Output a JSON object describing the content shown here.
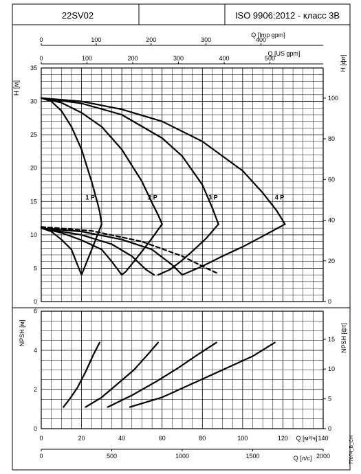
{
  "header": {
    "model": "22SV02",
    "standard": "ISO 9906:2012 - класс 3B"
  },
  "side_code": "77074_B_CH",
  "chart_data": [
    {
      "type": "line",
      "panel": "head",
      "ylabel": "H [м]",
      "ylabel_right": "H [фт]",
      "x_unit": "Q [м³/ч]",
      "xlim": [
        0,
        140
      ],
      "ylim": [
        0,
        35
      ],
      "yticks": [
        0,
        5,
        10,
        15,
        20,
        25,
        30,
        35
      ],
      "yticks_right": [
        0,
        20,
        40,
        60,
        80,
        100
      ],
      "ylim_right_ft": [
        0,
        114.8
      ],
      "top_axes": [
        {
          "label": "Q [Imp gpm]",
          "ticks": [
            0,
            100,
            200,
            300,
            400
          ],
          "max": 513.2
        },
        {
          "label": "Q [US gpm]",
          "ticks": [
            0,
            100,
            200,
            300,
            400,
            500
          ],
          "max": 616.4
        }
      ],
      "grid": true,
      "series": [
        {
          "name": "1 P",
          "label_at": [
            22,
            15.3
          ],
          "kind": "head",
          "points": [
            [
              0,
              30.5
            ],
            [
              5,
              30.0
            ],
            [
              10,
              28.6
            ],
            [
              15,
              26.2
            ],
            [
              20,
              22.8
            ],
            [
              25,
              18.0
            ],
            [
              28,
              14.7
            ],
            [
              29,
              13.5
            ],
            [
              30,
              11.6
            ]
          ]
        },
        {
          "name": "2 P",
          "label_at": [
            53,
            15.3
          ],
          "kind": "head",
          "points": [
            [
              0,
              30.5
            ],
            [
              10,
              29.8
            ],
            [
              20,
              28.3
            ],
            [
              30,
              26.2
            ],
            [
              40,
              22.8
            ],
            [
              50,
              18.0
            ],
            [
              55,
              14.8
            ],
            [
              58,
              13.0
            ],
            [
              60,
              11.6
            ]
          ]
        },
        {
          "name": "3 P",
          "label_at": [
            83,
            15.3
          ],
          "kind": "head",
          "points": [
            [
              0,
              30.5
            ],
            [
              20,
              29.7
            ],
            [
              40,
              28.0
            ],
            [
              60,
              24.5
            ],
            [
              70,
              21.8
            ],
            [
              80,
              17.5
            ],
            [
              85,
              14.0
            ],
            [
              88,
              11.6
            ]
          ]
        },
        {
          "name": "4 P",
          "label_at": [
            116,
            15.3
          ],
          "kind": "head",
          "points": [
            [
              0,
              30.5
            ],
            [
              20,
              30.0
            ],
            [
              40,
              28.8
            ],
            [
              60,
              27.0
            ],
            [
              80,
              24.0
            ],
            [
              100,
              19.6
            ],
            [
              110,
              16.3
            ],
            [
              117,
              13.6
            ],
            [
              121,
              11.6
            ]
          ]
        },
        {
          "kind": "efficiency",
          "points": [
            [
              30,
              11.6
            ],
            [
              26,
              8.5
            ],
            [
              24,
              7.0
            ],
            [
              22,
              5.5
            ],
            [
              20,
              4.0
            ]
          ]
        },
        {
          "kind": "efficiency",
          "points": [
            [
              60,
              11.6
            ],
            [
              55,
              9.5
            ],
            [
              50,
              7.5
            ],
            [
              46,
              6.0
            ],
            [
              42,
              4.5
            ],
            [
              40,
              4.0
            ]
          ]
        },
        {
          "kind": "efficiency",
          "points": [
            [
              88,
              11.6
            ],
            [
              82,
              9.5
            ],
            [
              76,
              7.8
            ],
            [
              70,
              6.2
            ],
            [
              64,
              4.8
            ],
            [
              58,
              4.0
            ]
          ]
        },
        {
          "kind": "efficiency",
          "points": [
            [
              121,
              11.6
            ],
            [
              110,
              9.8
            ],
            [
              100,
              8.2
            ],
            [
              90,
              6.8
            ],
            [
              80,
              5.3
            ],
            [
              70,
              4.0
            ]
          ]
        },
        {
          "kind": "input",
          "points": [
            [
              0,
              11.0
            ],
            [
              5,
              10.5
            ],
            [
              10,
              9.3
            ],
            [
              15,
              7.8
            ],
            [
              18,
              5.5
            ],
            [
              20,
              4.0
            ]
          ]
        },
        {
          "kind": "input",
          "points": [
            [
              0,
              11.0
            ],
            [
              10,
              10.3
            ],
            [
              20,
              9.2
            ],
            [
              30,
              7.8
            ],
            [
              35,
              6.0
            ],
            [
              40,
              4.0
            ]
          ]
        },
        {
          "kind": "input",
          "points": [
            [
              0,
              11.0
            ],
            [
              20,
              10.0
            ],
            [
              35,
              8.6
            ],
            [
              45,
              6.8
            ],
            [
              52,
              4.8
            ],
            [
              56,
              4.0
            ]
          ]
        },
        {
          "kind": "input",
          "points": [
            [
              0,
              11.0
            ],
            [
              20,
              10.5
            ],
            [
              40,
              9.3
            ],
            [
              55,
              7.8
            ],
            [
              65,
              5.5
            ],
            [
              70,
              4.0
            ]
          ]
        },
        {
          "kind": "dashed",
          "points": [
            [
              0,
              11.2
            ],
            [
              25,
              10.6
            ],
            [
              50,
              9.0
            ],
            [
              70,
              6.8
            ],
            [
              82,
              5.0
            ],
            [
              87,
              4.3
            ]
          ]
        }
      ]
    },
    {
      "type": "line",
      "panel": "npsh",
      "ylabel": "NPSH [м]",
      "ylabel_right": "NPSH [фт]",
      "xlabel": "Q [м³/ч]",
      "xlabel_lower": "Q [л/с]",
      "xlim": [
        0,
        140
      ],
      "ylim": [
        0,
        6
      ],
      "xticks": [
        0,
        20,
        40,
        60,
        80,
        100,
        120,
        140
      ],
      "xticks_lower": [
        0,
        500,
        1000,
        1500,
        2000
      ],
      "xlim_lower": [
        0,
        2000
      ],
      "yticks": [
        0,
        2,
        4,
        6
      ],
      "yticks_right": [
        0,
        5,
        10,
        15
      ],
      "ylim_right_ft": [
        0,
        19.7
      ],
      "grid": true,
      "series": [
        {
          "points": [
            [
              11,
              1.1
            ],
            [
              14,
              1.5
            ],
            [
              18,
              2.1
            ],
            [
              22,
              2.9
            ],
            [
              26,
              3.8
            ],
            [
              29,
              4.4
            ]
          ]
        },
        {
          "points": [
            [
              22,
              1.1
            ],
            [
              30,
              1.6
            ],
            [
              38,
              2.3
            ],
            [
              46,
              3.0
            ],
            [
              53,
              3.8
            ],
            [
              58,
              4.4
            ]
          ]
        },
        {
          "points": [
            [
              33,
              1.1
            ],
            [
              45,
              1.7
            ],
            [
              57,
              2.4
            ],
            [
              68,
              3.1
            ],
            [
              78,
              3.8
            ],
            [
              87,
              4.4
            ]
          ]
        },
        {
          "points": [
            [
              44,
              1.1
            ],
            [
              60,
              1.6
            ],
            [
              75,
              2.3
            ],
            [
              90,
              3.0
            ],
            [
              105,
              3.7
            ],
            [
              116,
              4.4
            ]
          ]
        }
      ]
    }
  ]
}
